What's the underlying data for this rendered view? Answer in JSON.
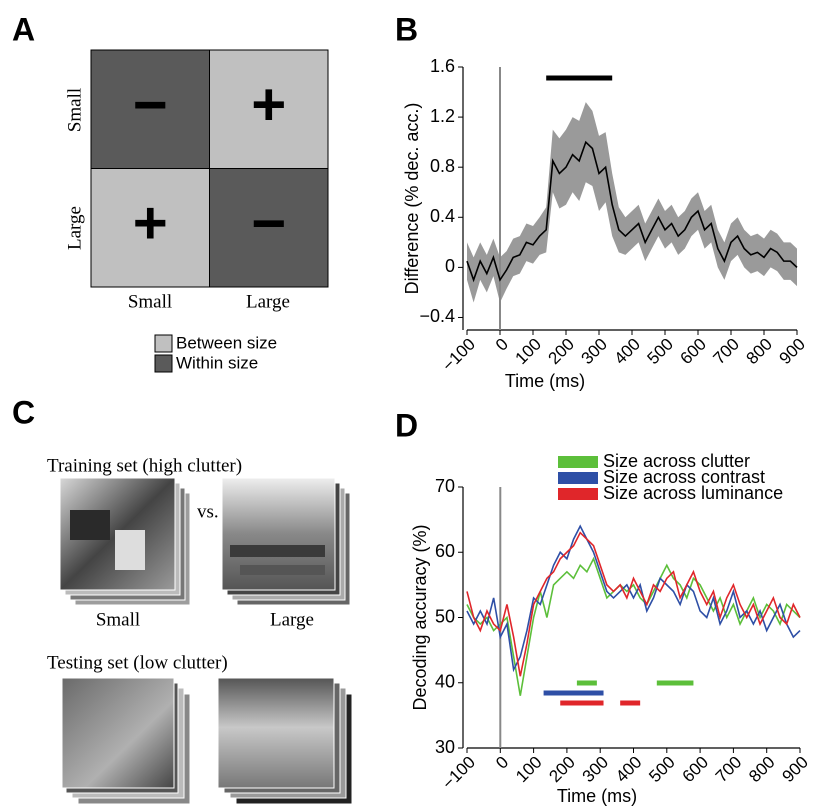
{
  "panel_a": {
    "letter": "A",
    "cells": [
      [
        "−",
        "+"
      ],
      [
        "+",
        "−"
      ]
    ],
    "rows": [
      "Small",
      "Large"
    ],
    "columns": [
      "Small",
      "Large"
    ],
    "legend": [
      {
        "name": "Between size",
        "color": "#c0c0c0"
      },
      {
        "name": "Within size",
        "color": "#5a5a5a"
      }
    ]
  },
  "panel_c": {
    "letter": "C",
    "training": "Training set (high clutter)",
    "vs": "vs.",
    "small": "Small",
    "large": "Large",
    "testing": "Testing set (low clutter)"
  },
  "chart_data": [
    {
      "type": "line",
      "panel": "B",
      "xlabel": "Time (ms)",
      "ylabel": "Difference (% dec. acc.)",
      "xlim": [
        -100,
        900
      ],
      "ylim": [
        -0.5,
        1.6
      ],
      "xticks": [
        {
          "value": -100,
          "label": "−100"
        },
        0,
        100,
        200,
        300,
        400,
        500,
        600,
        700,
        800,
        900
      ],
      "yticks": [
        {
          "value": -0.4,
          "label": "−0.4"
        },
        0,
        0.4,
        0.8,
        1.2,
        1.6
      ],
      "vline": 0,
      "band_color": "#9a9a9a",
      "x": [
        -100,
        -80,
        -60,
        -40,
        -20,
        0,
        20,
        40,
        60,
        80,
        100,
        120,
        140,
        160,
        180,
        200,
        220,
        240,
        260,
        280,
        300,
        320,
        340,
        360,
        380,
        400,
        420,
        440,
        460,
        480,
        500,
        520,
        540,
        560,
        580,
        600,
        620,
        640,
        660,
        680,
        700,
        720,
        740,
        760,
        780,
        800,
        820,
        840,
        860,
        880,
        900
      ],
      "series": [
        {
          "color": "#000000",
          "values": [
            0.05,
            -0.1,
            0.05,
            -0.05,
            0.08,
            -0.1,
            -0.02,
            0.08,
            0.1,
            0.2,
            0.18,
            0.25,
            0.3,
            0.85,
            0.75,
            0.8,
            0.9,
            0.85,
            1.0,
            0.95,
            0.75,
            0.8,
            0.5,
            0.3,
            0.25,
            0.3,
            0.35,
            0.2,
            0.3,
            0.4,
            0.3,
            0.35,
            0.25,
            0.3,
            0.4,
            0.45,
            0.3,
            0.35,
            0.15,
            0.05,
            0.2,
            0.25,
            0.15,
            0.1,
            0.12,
            0.08,
            0.15,
            0.12,
            0.05,
            0.05,
            0.0
          ],
          "error": [
            0.15,
            0.18,
            0.15,
            0.15,
            0.15,
            0.18,
            0.15,
            0.15,
            0.15,
            0.15,
            0.15,
            0.15,
            0.18,
            0.25,
            0.28,
            0.3,
            0.3,
            0.32,
            0.32,
            0.3,
            0.3,
            0.28,
            0.25,
            0.18,
            0.15,
            0.15,
            0.15,
            0.15,
            0.15,
            0.15,
            0.15,
            0.15,
            0.15,
            0.15,
            0.15,
            0.15,
            0.15,
            0.15,
            0.15,
            0.15,
            0.15,
            0.15,
            0.15,
            0.15,
            0.15,
            0.15,
            0.15,
            0.15,
            0.15,
            0.15,
            0.15
          ],
          "significance": [
            [
              140,
              340
            ]
          ]
        }
      ]
    },
    {
      "type": "line",
      "panel": "D",
      "xlabel": "Time (ms)",
      "ylabel": "Decoding accuracy (%)",
      "xlim": [
        -100,
        900
      ],
      "ylim": [
        30,
        70
      ],
      "xticks": [
        {
          "value": -100,
          "label": "−100"
        },
        0,
        100,
        200,
        300,
        400,
        500,
        600,
        700,
        800,
        900
      ],
      "yticks": [
        30,
        40,
        50,
        60,
        70
      ],
      "vline": 0,
      "legend": "top-right",
      "x": [
        -100,
        -80,
        -60,
        -40,
        -20,
        0,
        20,
        40,
        60,
        80,
        100,
        120,
        140,
        160,
        180,
        200,
        220,
        240,
        260,
        280,
        300,
        320,
        340,
        360,
        380,
        400,
        420,
        440,
        460,
        480,
        500,
        520,
        540,
        560,
        580,
        600,
        620,
        640,
        660,
        680,
        700,
        720,
        740,
        760,
        780,
        800,
        820,
        840,
        860,
        880,
        900
      ],
      "series": [
        {
          "name": "Size across clutter",
          "color": "#5cbf3a",
          "values": [
            52,
            50,
            49,
            50,
            48,
            49,
            50,
            44,
            38,
            44,
            50,
            54,
            50,
            55,
            56,
            57,
            56,
            58,
            57,
            59,
            56,
            53,
            54,
            55,
            54,
            55,
            53,
            52,
            54,
            56,
            58,
            56,
            55,
            53,
            56,
            55,
            53,
            51,
            53,
            50,
            52,
            49,
            51,
            53,
            50,
            52,
            51,
            49,
            52,
            51,
            50
          ],
          "significance": [
            [
              230,
              290
            ],
            [
              470,
              580
            ]
          ]
        },
        {
          "name": "Size across contrast",
          "color": "#2e4fa6",
          "values": [
            51,
            49,
            51,
            49,
            53,
            47,
            49,
            42,
            44,
            48,
            53,
            52,
            55,
            58,
            60,
            59,
            62,
            64,
            62,
            60,
            57,
            54,
            53,
            54,
            55,
            53,
            55,
            51,
            53,
            56,
            55,
            54,
            52,
            55,
            54,
            51,
            50,
            53,
            49,
            51,
            54,
            50,
            51,
            49,
            51,
            48,
            50,
            52,
            49,
            47,
            48
          ],
          "significance": [
            [
              130,
              310
            ]
          ]
        },
        {
          "name": "Size across luminance",
          "color": "#e0262a",
          "values": [
            54,
            50,
            48,
            51,
            49,
            48,
            52,
            47,
            41,
            46,
            52,
            54,
            56,
            57,
            59,
            60,
            61,
            63,
            62,
            61,
            58,
            55,
            54,
            55,
            53,
            56,
            54,
            52,
            55,
            54,
            56,
            57,
            53,
            55,
            57,
            54,
            52,
            54,
            50,
            53,
            55,
            52,
            50,
            52,
            49,
            51,
            53,
            50,
            49,
            52,
            50
          ],
          "significance": [
            [
              180,
              310
            ],
            [
              360,
              420
            ]
          ]
        }
      ]
    }
  ]
}
